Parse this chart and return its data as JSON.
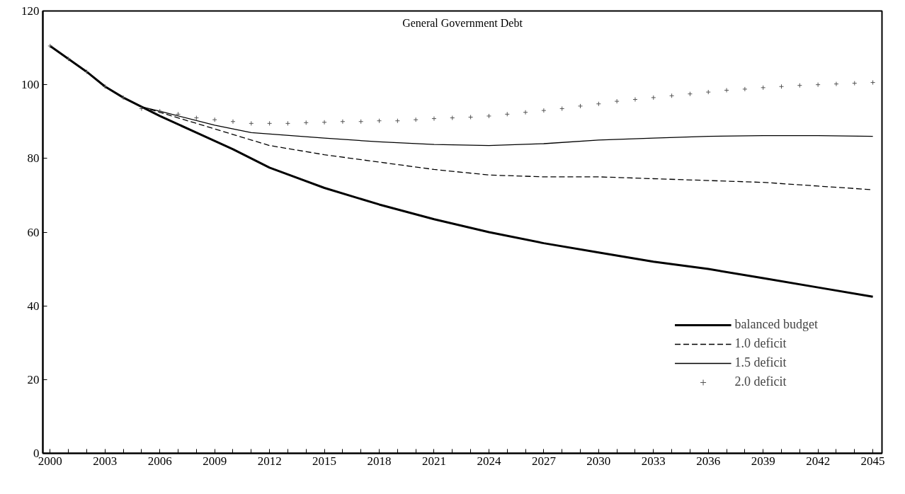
{
  "chart_data": {
    "type": "line",
    "title": "General Government Debt",
    "xlim": [
      1999.6,
      2045.5
    ],
    "ylim": [
      0,
      120
    ],
    "xticks": [
      2000,
      {
        "value": 2001,
        "label": null
      },
      {
        "value": 2002,
        "label": null
      },
      2003,
      {
        "value": 2004,
        "label": null
      },
      {
        "value": 2005,
        "label": null
      },
      2006,
      {
        "value": 2007,
        "label": null
      },
      {
        "value": 2008,
        "label": null
      },
      2009,
      {
        "value": 2010,
        "label": null
      },
      {
        "value": 2011,
        "label": null
      },
      2012,
      {
        "value": 2013,
        "label": null
      },
      {
        "value": 2014,
        "label": null
      },
      2015,
      {
        "value": 2016,
        "label": null
      },
      {
        "value": 2017,
        "label": null
      },
      2018,
      {
        "value": 2019,
        "label": null
      },
      {
        "value": 2020,
        "label": null
      },
      2021,
      {
        "value": 2022,
        "label": null
      },
      {
        "value": 2023,
        "label": null
      },
      2024,
      {
        "value": 2025,
        "label": null
      },
      {
        "value": 2026,
        "label": null
      },
      2027,
      {
        "value": 2028,
        "label": null
      },
      {
        "value": 2029,
        "label": null
      },
      2030,
      {
        "value": 2031,
        "label": null
      },
      {
        "value": 2032,
        "label": null
      },
      2033,
      {
        "value": 2034,
        "label": null
      },
      {
        "value": 2035,
        "label": null
      },
      2036,
      {
        "value": 2037,
        "label": null
      },
      {
        "value": 2038,
        "label": null
      },
      2039,
      {
        "value": 2040,
        "label": null
      },
      {
        "value": 2041,
        "label": null
      },
      2042,
      {
        "value": 2043,
        "label": null
      },
      {
        "value": 2044,
        "label": null
      },
      2045
    ],
    "yticks": [
      0,
      20,
      40,
      60,
      80,
      100,
      120
    ],
    "grid": false,
    "legend": "bottom right",
    "series": [
      {
        "name": "balanced budget",
        "color": "#000000",
        "line_style": "solid",
        "x": [
          2000,
          2001,
          2002,
          2003,
          2004,
          2005,
          2006,
          2008,
          2010,
          2011,
          2012,
          2015,
          2018,
          2021,
          2024,
          2027,
          2030,
          2033,
          2036,
          2039,
          2042,
          2045
        ],
        "values": [
          110.5,
          107,
          103.5,
          99.5,
          96.5,
          94,
          91.5,
          87,
          82.5,
          80,
          77.5,
          72,
          67.5,
          63.5,
          60,
          57,
          54.5,
          52,
          50,
          47.5,
          45,
          42.5
        ]
      },
      {
        "name": "1.0 deficit",
        "color": "#000000",
        "line_style": "dashed",
        "x": [
          2000,
          2001,
          2002,
          2003,
          2004,
          2005,
          2006,
          2009,
          2011,
          2012,
          2015,
          2018,
          2021,
          2024,
          2027,
          2030,
          2033,
          2036,
          2039,
          2042,
          2045
        ],
        "values": [
          110.5,
          107,
          103.5,
          99.5,
          96.5,
          94,
          92.5,
          88,
          85,
          83.5,
          81,
          79,
          77,
          75.5,
          75,
          75,
          74.5,
          74,
          73.5,
          72.5,
          71.5
        ]
      },
      {
        "name": "1.5 deficit",
        "color": "#000000",
        "line_style": "solid",
        "x": [
          2000,
          2001,
          2002,
          2003,
          2004,
          2005,
          2006,
          2009,
          2011,
          2015,
          2018,
          2021,
          2024,
          2027,
          2030,
          2033,
          2036,
          2039,
          2042,
          2045
        ],
        "values": [
          110.5,
          107,
          103.5,
          99.5,
          96.5,
          94,
          92.8,
          89,
          87,
          85.5,
          84.5,
          83.8,
          83.5,
          84,
          85,
          85.5,
          86,
          86.2,
          86.2,
          86
        ]
      },
      {
        "name": "2.0 deficit",
        "type": "scatter",
        "marker": "cross",
        "color": "#555555",
        "x": [
          2000,
          2001,
          2002,
          2003,
          2004,
          2005,
          2006,
          2007,
          2008,
          2009,
          2010,
          2011,
          2012,
          2013,
          2014,
          2015,
          2016,
          2017,
          2018,
          2019,
          2020,
          2021,
          2022,
          2023,
          2024,
          2025,
          2026,
          2027,
          2028,
          2029,
          2030,
          2031,
          2032,
          2033,
          2034,
          2035,
          2036,
          2037,
          2038,
          2039,
          2040,
          2041,
          2042,
          2043,
          2044,
          2045
        ],
        "values": [
          110.5,
          107,
          103.5,
          99.5,
          96.5,
          93.5,
          92.8,
          92,
          91,
          90.5,
          90,
          89.5,
          89.5,
          89.5,
          89.7,
          89.8,
          90,
          90,
          90.2,
          90.2,
          90.5,
          90.8,
          91,
          91.2,
          91.5,
          92,
          92.5,
          93,
          93.5,
          94.2,
          94.8,
          95.5,
          96,
          96.5,
          97,
          97.5,
          98,
          98.5,
          98.8,
          99.2,
          99.5,
          99.8,
          100,
          100.2,
          100.4,
          100.6
        ]
      }
    ]
  }
}
